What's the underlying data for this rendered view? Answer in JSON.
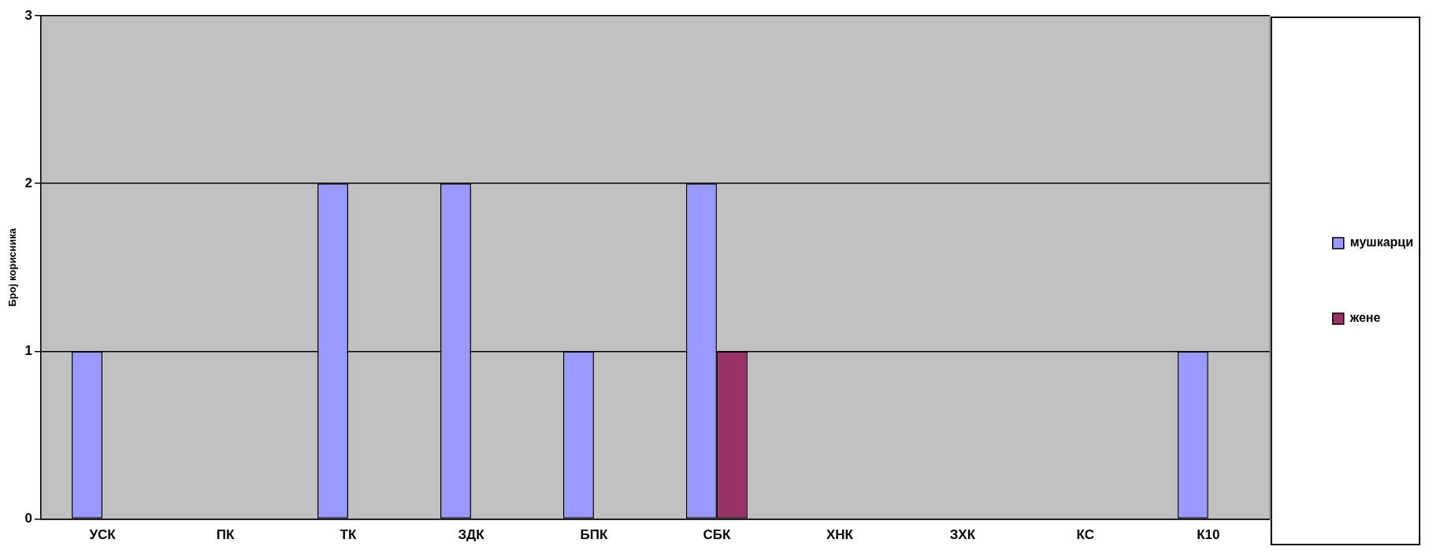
{
  "chart_data": {
    "type": "bar",
    "ylabel": "Број корисника",
    "categories": [
      "УСК",
      "ПК",
      "ТК",
      "ЗДК",
      "БПК",
      "СБК",
      "ХНК",
      "ЗХК",
      "КС",
      "К10"
    ],
    "series": [
      {
        "name": "мушкарци",
        "color": "#9999ff",
        "values": [
          1,
          0,
          2,
          2,
          1,
          2,
          0,
          0,
          0,
          1
        ]
      },
      {
        "name": "жене",
        "color": "#993366",
        "values": [
          0,
          0,
          0,
          0,
          0,
          1,
          0,
          0,
          0,
          0
        ]
      }
    ],
    "ylim": [
      0,
      3
    ],
    "yticks": [
      0,
      1,
      2,
      3
    ],
    "grid": "y",
    "legend": "right"
  }
}
